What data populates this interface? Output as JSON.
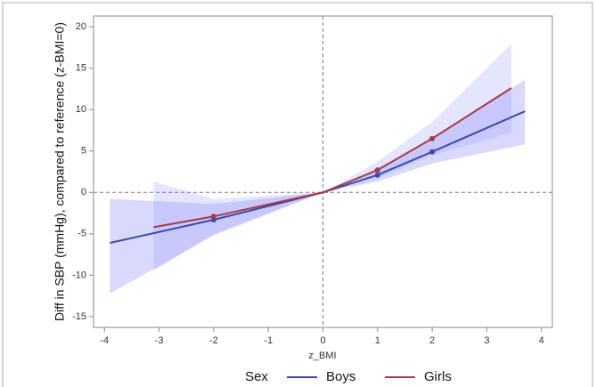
{
  "chart_data": {
    "type": "line",
    "ylabel": "Diff in SBP (mmHg), compared to reference (z-BMI=0)",
    "xlabel": "z_BMI",
    "legend_title": "Sex",
    "xlim": [
      -4.2,
      4.2
    ],
    "ylim": [
      -16.3,
      21.3
    ],
    "xticks": [
      -4,
      -3,
      -2,
      -1,
      0,
      1,
      2,
      3,
      4
    ],
    "yticks": [
      -15,
      -10,
      -5,
      0,
      5,
      10,
      15,
      20
    ],
    "reference_lines": {
      "x": 0,
      "y": 0
    },
    "legend": "bottom",
    "series": [
      {
        "name": "Boys",
        "color": "#3b4aa6",
        "band_color": "rgba(120,120,245,0.28)",
        "x": [
          -3.9,
          -2,
          0,
          1,
          2,
          3.7
        ],
        "values": [
          -6.1,
          -3.3,
          0,
          2.1,
          4.9,
          9.8
        ],
        "lower": [
          -12.2,
          -5.2,
          0,
          1.3,
          3.5,
          5.8
        ],
        "upper": [
          -0.8,
          -1.4,
          0,
          2.9,
          6.5,
          13.6
        ]
      },
      {
        "name": "Girls",
        "color": "#a33c47",
        "band_color": "rgba(150,150,250,0.25)",
        "x": [
          -3.1,
          -2,
          0,
          1,
          2,
          3.45
        ],
        "values": [
          -4.2,
          -2.9,
          0,
          2.7,
          6.5,
          12.6
        ],
        "lower": [
          -9.5,
          -5.0,
          0,
          1.7,
          4.5,
          7.2
        ],
        "upper": [
          1.3,
          -0.8,
          0,
          3.7,
          8.5,
          17.9
        ]
      }
    ]
  }
}
